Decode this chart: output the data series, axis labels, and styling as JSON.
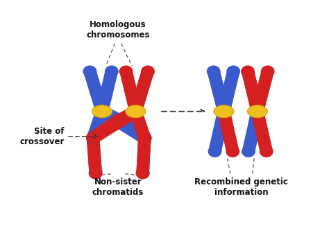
{
  "background_color": "#ffffff",
  "blue_color": "#3a5acd",
  "red_color": "#d42020",
  "yellow_color": "#f0c020",
  "label_color": "#111111",
  "title_text": "Homologous\nchromosomes",
  "label_nsc": "Non-sister\nchromatids",
  "label_rgi": "Recombined genetic\ninformation",
  "label_soc": "Site of\ncrossover",
  "arrow_color": "#333333",
  "dashed_color": "#555555"
}
